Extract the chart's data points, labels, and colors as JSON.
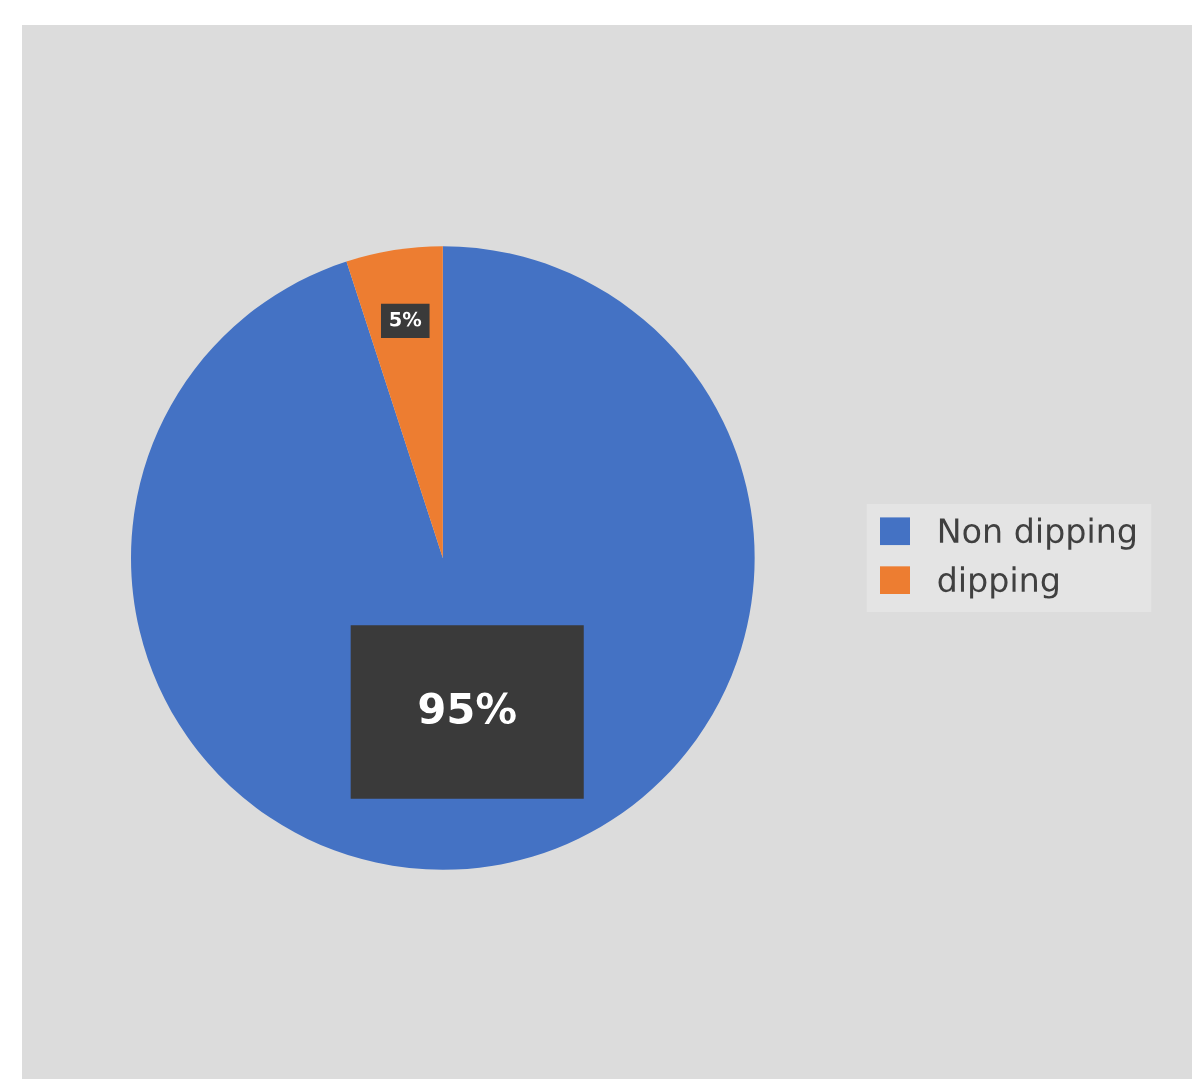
{
  "chart_data": {
    "type": "pie",
    "categories": [
      "Non dipping",
      "dipping"
    ],
    "values": [
      95,
      5
    ],
    "colors": [
      "#4472c4",
      "#ed7d31"
    ],
    "value_labels": [
      "95%",
      "5%"
    ],
    "legend": "right"
  }
}
